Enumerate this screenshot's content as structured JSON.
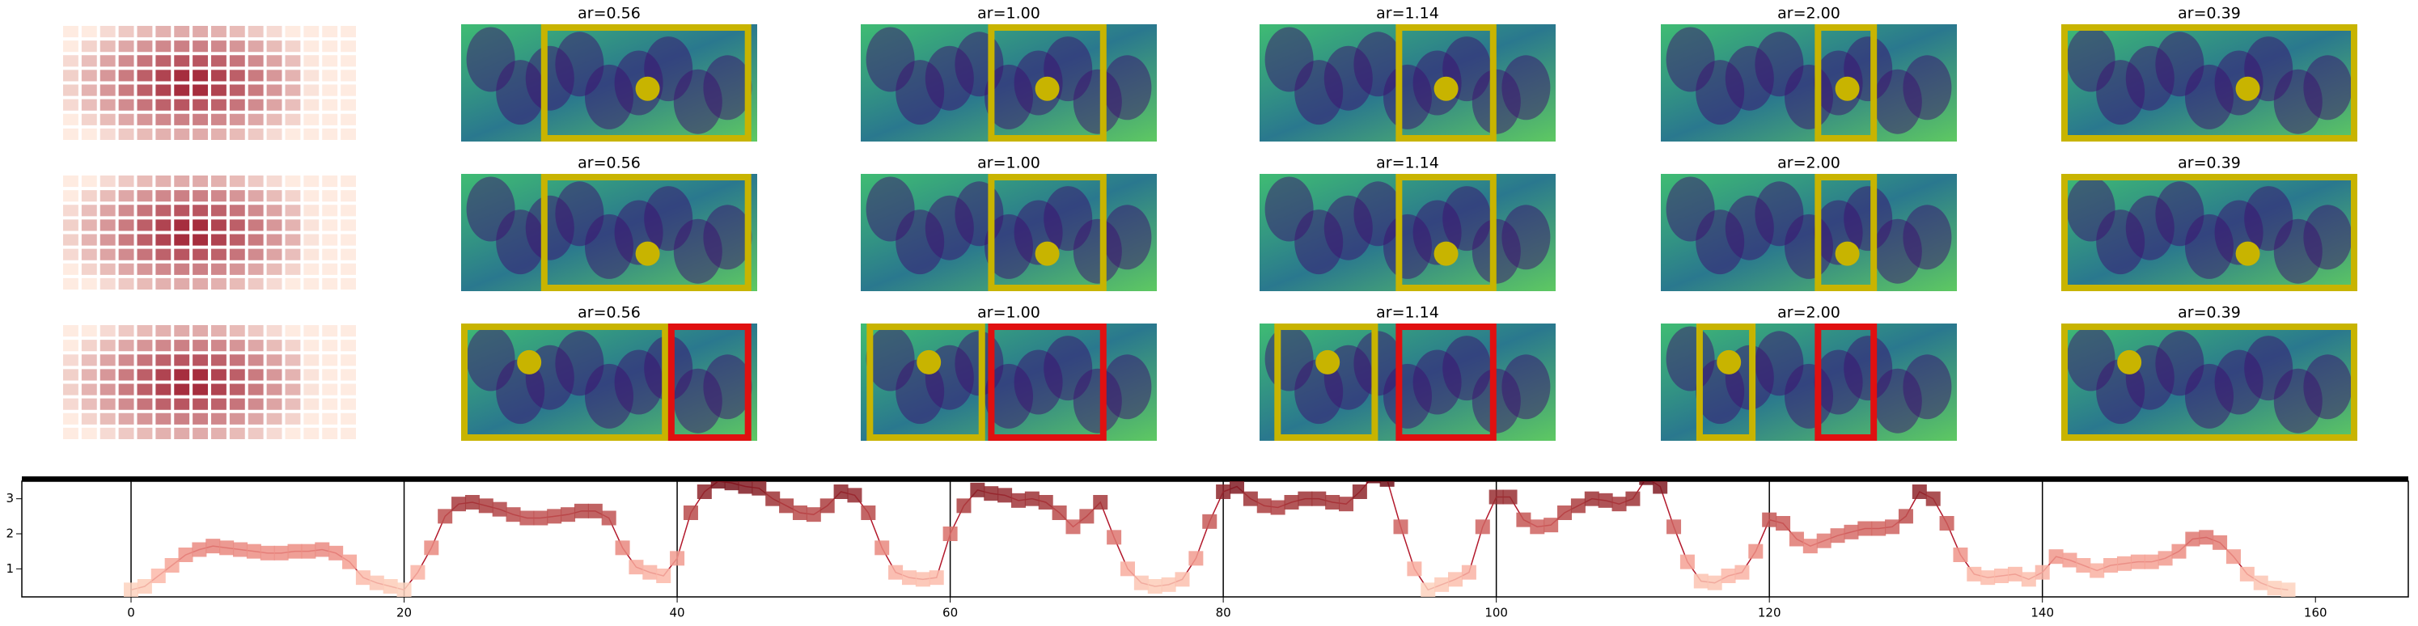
{
  "panels": {
    "titles": [
      [
        "ar=0.56",
        "ar=1.00",
        "ar=1.14",
        "ar=2.00",
        "ar=0.39"
      ],
      [
        "ar=0.56",
        "ar=1.00",
        "ar=1.14",
        "ar=2.00",
        "ar=0.39"
      ],
      [
        "ar=0.56",
        "ar=1.00",
        "ar=1.14",
        "ar=2.00",
        "ar=0.39"
      ]
    ]
  },
  "chart_data": {
    "type": "line",
    "cmap": "Reds",
    "color": "#b2182b",
    "x": [
      0,
      1,
      2,
      3,
      4,
      5,
      6,
      7,
      8,
      9,
      10,
      11,
      12,
      13,
      14,
      15,
      16,
      17,
      18,
      19,
      20,
      21,
      22,
      23,
      24,
      25,
      26,
      27,
      28,
      29,
      30,
      31,
      32,
      33,
      34,
      35,
      36,
      37,
      38,
      39,
      40,
      41,
      42,
      43,
      44,
      45,
      46,
      47,
      48,
      49,
      50,
      51,
      52,
      53,
      54,
      55,
      56,
      57,
      58,
      59,
      60,
      61,
      62,
      63,
      64,
      65,
      66,
      67,
      68,
      69,
      70,
      71,
      72,
      73,
      74,
      75,
      76,
      77,
      78,
      79,
      80,
      81,
      82,
      83,
      84,
      85,
      86,
      87,
      88,
      89,
      90,
      91,
      92,
      93,
      94,
      95,
      96,
      97,
      98,
      99,
      100,
      101,
      102,
      103,
      104,
      105,
      106,
      107,
      108,
      109,
      110,
      111,
      112,
      113,
      114,
      115,
      116,
      117,
      118,
      119,
      120,
      121,
      122,
      123,
      124,
      125,
      126,
      127,
      128,
      129,
      130,
      131,
      132,
      133,
      134,
      135,
      136,
      137,
      138,
      139,
      140,
      141,
      142,
      143,
      144,
      145,
      146,
      147,
      148,
      149,
      150,
      151,
      152,
      153,
      154,
      155,
      156,
      157,
      158
    ],
    "values": [
      0.4,
      0.5,
      0.8,
      1.1,
      1.4,
      1.55,
      1.65,
      1.6,
      1.55,
      1.5,
      1.45,
      1.45,
      1.5,
      1.5,
      1.55,
      1.45,
      1.2,
      0.75,
      0.6,
      0.5,
      0.4,
      0.9,
      1.6,
      2.5,
      2.85,
      2.9,
      2.8,
      2.7,
      2.55,
      2.45,
      2.45,
      2.5,
      2.55,
      2.65,
      2.65,
      2.45,
      1.6,
      1.05,
      0.9,
      0.8,
      1.3,
      2.6,
      3.2,
      3.5,
      3.45,
      3.35,
      3.3,
      3.0,
      2.8,
      2.6,
      2.55,
      2.8,
      3.2,
      3.1,
      2.6,
      1.6,
      0.9,
      0.75,
      0.7,
      0.75,
      2.0,
      2.8,
      3.25,
      3.15,
      3.1,
      2.95,
      3.0,
      2.9,
      2.6,
      2.2,
      2.5,
      2.9,
      1.9,
      1.0,
      0.6,
      0.5,
      0.55,
      0.7,
      1.3,
      2.35,
      3.2,
      3.35,
      3.0,
      2.8,
      2.75,
      2.9,
      3.0,
      3.0,
      2.9,
      2.85,
      3.2,
      3.65,
      3.55,
      2.2,
      1.0,
      0.4,
      0.55,
      0.7,
      0.9,
      2.2,
      3.05,
      3.05,
      2.4,
      2.2,
      2.25,
      2.6,
      2.8,
      3.0,
      2.95,
      2.85,
      3.0,
      3.6,
      3.35,
      2.2,
      1.2,
      0.65,
      0.6,
      0.8,
      0.9,
      1.5,
      2.4,
      2.3,
      1.85,
      1.65,
      1.8,
      1.95,
      2.05,
      2.15,
      2.15,
      2.2,
      2.5,
      3.2,
      3.0,
      2.3,
      1.4,
      0.85,
      0.75,
      0.8,
      0.85,
      0.7,
      0.9,
      1.35,
      1.25,
      1.1,
      0.95,
      1.1,
      1.15,
      1.2,
      1.2,
      1.3,
      1.5,
      1.85,
      1.9,
      1.75,
      1.35,
      0.85,
      0.6,
      0.45,
      0.4
    ],
    "xlim": [
      -8,
      166.8
    ],
    "xticks": [
      0,
      20,
      40,
      60,
      80,
      100,
      120,
      140,
      160
    ],
    "ylim": [
      0.2,
      3.5
    ],
    "yticks": [
      1,
      2,
      3
    ],
    "vlines": [
      0,
      20,
      40,
      60,
      80,
      100,
      120,
      140
    ]
  }
}
